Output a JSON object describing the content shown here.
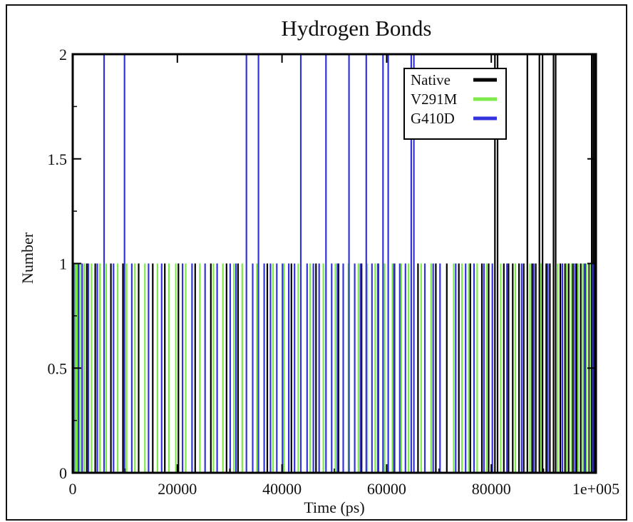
{
  "chart_data": {
    "type": "line",
    "render_style": "drop-lines",
    "title": "Hydrogen Bonds",
    "xlabel": "Time (ps)",
    "ylabel": "Number",
    "xlim": [
      0,
      100000
    ],
    "ylim": [
      0,
      2
    ],
    "xticks": [
      0,
      20000,
      40000,
      60000,
      80000,
      100000
    ],
    "xtick_labels": [
      "0",
      "20000",
      "40000",
      "60000",
      "80000",
      "1e+005"
    ],
    "yticks": [
      0,
      0.5,
      1,
      1.5,
      2
    ],
    "ytick_labels": [
      "0",
      "0.5",
      "1",
      "1.5",
      "2"
    ],
    "grid": false,
    "legend_position": "top-right",
    "series": [
      {
        "name": "Native",
        "color": "#000000",
        "events": [
          {
            "x": 500,
            "y": 1
          },
          {
            "x": 2700,
            "y": 1
          },
          {
            "x": 4300,
            "y": 1
          },
          {
            "x": 7300,
            "y": 1
          },
          {
            "x": 9600,
            "y": 1
          },
          {
            "x": 12600,
            "y": 1
          },
          {
            "x": 15300,
            "y": 1
          },
          {
            "x": 17600,
            "y": 1
          },
          {
            "x": 20200,
            "y": 1
          },
          {
            "x": 23400,
            "y": 1
          },
          {
            "x": 26400,
            "y": 1
          },
          {
            "x": 29400,
            "y": 1
          },
          {
            "x": 31600,
            "y": 1
          },
          {
            "x": 37200,
            "y": 1
          },
          {
            "x": 41800,
            "y": 1
          },
          {
            "x": 46500,
            "y": 1
          },
          {
            "x": 50800,
            "y": 1
          },
          {
            "x": 55200,
            "y": 1
          },
          {
            "x": 58400,
            "y": 1
          },
          {
            "x": 61500,
            "y": 1
          },
          {
            "x": 66000,
            "y": 1
          },
          {
            "x": 69400,
            "y": 1
          },
          {
            "x": 71500,
            "y": 1
          },
          {
            "x": 73800,
            "y": 1
          },
          {
            "x": 76000,
            "y": 1
          },
          {
            "x": 78200,
            "y": 1
          },
          {
            "x": 79500,
            "y": 1
          },
          {
            "x": 80700,
            "y": 2
          },
          {
            "x": 81200,
            "y": 2
          },
          {
            "x": 82400,
            "y": 1
          },
          {
            "x": 83300,
            "y": 1
          },
          {
            "x": 84100,
            "y": 1
          },
          {
            "x": 85300,
            "y": 1
          },
          {
            "x": 86200,
            "y": 1
          },
          {
            "x": 86900,
            "y": 2
          },
          {
            "x": 87800,
            "y": 1
          },
          {
            "x": 88500,
            "y": 1
          },
          {
            "x": 89200,
            "y": 2
          },
          {
            "x": 89800,
            "y": 2
          },
          {
            "x": 90500,
            "y": 1
          },
          {
            "x": 91200,
            "y": 1
          },
          {
            "x": 91900,
            "y": 2
          },
          {
            "x": 92300,
            "y": 2
          },
          {
            "x": 93200,
            "y": 1
          },
          {
            "x": 94100,
            "y": 1
          },
          {
            "x": 94800,
            "y": 1
          },
          {
            "x": 95600,
            "y": 1
          },
          {
            "x": 96300,
            "y": 1
          },
          {
            "x": 97100,
            "y": 1
          },
          {
            "x": 98000,
            "y": 1
          },
          {
            "x": 98700,
            "y": 1
          },
          {
            "x": 99200,
            "y": 2
          },
          {
            "x": 99500,
            "y": 2
          },
          {
            "x": 99800,
            "y": 2
          }
        ]
      },
      {
        "name": "V291M",
        "color": "#7ce84a",
        "events": [
          {
            "x": 100,
            "y": 1
          },
          {
            "x": 300,
            "y": 1
          },
          {
            "x": 600,
            "y": 1
          },
          {
            "x": 900,
            "y": 1
          },
          {
            "x": 1400,
            "y": 1
          },
          {
            "x": 2200,
            "y": 1
          },
          {
            "x": 3600,
            "y": 1
          },
          {
            "x": 5200,
            "y": 1
          },
          {
            "x": 6400,
            "y": 1
          },
          {
            "x": 8600,
            "y": 1
          },
          {
            "x": 10300,
            "y": 1
          },
          {
            "x": 11900,
            "y": 1
          },
          {
            "x": 13800,
            "y": 1
          },
          {
            "x": 16200,
            "y": 1
          },
          {
            "x": 18400,
            "y": 1
          },
          {
            "x": 19700,
            "y": 1
          },
          {
            "x": 21600,
            "y": 1
          },
          {
            "x": 24300,
            "y": 1
          },
          {
            "x": 26900,
            "y": 1
          },
          {
            "x": 28700,
            "y": 1
          },
          {
            "x": 30800,
            "y": 1
          },
          {
            "x": 32400,
            "y": 1
          },
          {
            "x": 35200,
            "y": 1
          },
          {
            "x": 38300,
            "y": 1
          },
          {
            "x": 40400,
            "y": 1
          },
          {
            "x": 43100,
            "y": 1
          },
          {
            "x": 45400,
            "y": 1
          },
          {
            "x": 47900,
            "y": 1
          },
          {
            "x": 50200,
            "y": 1
          },
          {
            "x": 52700,
            "y": 1
          },
          {
            "x": 54600,
            "y": 1
          },
          {
            "x": 56300,
            "y": 1
          },
          {
            "x": 57800,
            "y": 1
          },
          {
            "x": 59600,
            "y": 1
          },
          {
            "x": 61100,
            "y": 1
          },
          {
            "x": 62800,
            "y": 1
          },
          {
            "x": 64200,
            "y": 1
          },
          {
            "x": 66600,
            "y": 1
          },
          {
            "x": 68500,
            "y": 1
          },
          {
            "x": 72800,
            "y": 1
          },
          {
            "x": 74400,
            "y": 1
          },
          {
            "x": 75700,
            "y": 1
          },
          {
            "x": 77300,
            "y": 1
          },
          {
            "x": 79100,
            "y": 1
          },
          {
            "x": 81800,
            "y": 1
          },
          {
            "x": 84600,
            "y": 1
          },
          {
            "x": 87400,
            "y": 1
          },
          {
            "x": 89500,
            "y": 1
          },
          {
            "x": 92700,
            "y": 1
          },
          {
            "x": 94400,
            "y": 1
          },
          {
            "x": 95300,
            "y": 1
          },
          {
            "x": 96600,
            "y": 1
          },
          {
            "x": 97500,
            "y": 1
          },
          {
            "x": 98200,
            "y": 1
          },
          {
            "x": 98900,
            "y": 1
          }
        ]
      },
      {
        "name": "G410D",
        "color": "#3333dd",
        "events": [
          {
            "x": 200,
            "y": 1
          },
          {
            "x": 1100,
            "y": 1
          },
          {
            "x": 1800,
            "y": 1
          },
          {
            "x": 3000,
            "y": 1
          },
          {
            "x": 4700,
            "y": 1
          },
          {
            "x": 6000,
            "y": 2
          },
          {
            "x": 7800,
            "y": 1
          },
          {
            "x": 9900,
            "y": 2
          },
          {
            "x": 11300,
            "y": 1
          },
          {
            "x": 14500,
            "y": 1
          },
          {
            "x": 17000,
            "y": 1
          },
          {
            "x": 21000,
            "y": 1
          },
          {
            "x": 22800,
            "y": 1
          },
          {
            "x": 25300,
            "y": 1
          },
          {
            "x": 27600,
            "y": 1
          },
          {
            "x": 30100,
            "y": 1
          },
          {
            "x": 31200,
            "y": 1
          },
          {
            "x": 33200,
            "y": 2
          },
          {
            "x": 34400,
            "y": 1
          },
          {
            "x": 35500,
            "y": 2
          },
          {
            "x": 36600,
            "y": 1
          },
          {
            "x": 37800,
            "y": 1
          },
          {
            "x": 39000,
            "y": 1
          },
          {
            "x": 40100,
            "y": 1
          },
          {
            "x": 41300,
            "y": 1
          },
          {
            "x": 42400,
            "y": 1
          },
          {
            "x": 43600,
            "y": 2
          },
          {
            "x": 44800,
            "y": 1
          },
          {
            "x": 46000,
            "y": 1
          },
          {
            "x": 47100,
            "y": 1
          },
          {
            "x": 48400,
            "y": 2
          },
          {
            "x": 49500,
            "y": 1
          },
          {
            "x": 50600,
            "y": 1
          },
          {
            "x": 51700,
            "y": 1
          },
          {
            "x": 52800,
            "y": 2
          },
          {
            "x": 53900,
            "y": 1
          },
          {
            "x": 55000,
            "y": 1
          },
          {
            "x": 56100,
            "y": 2
          },
          {
            "x": 57200,
            "y": 1
          },
          {
            "x": 58300,
            "y": 1
          },
          {
            "x": 59300,
            "y": 2
          },
          {
            "x": 60300,
            "y": 2
          },
          {
            "x": 61400,
            "y": 1
          },
          {
            "x": 62500,
            "y": 1
          },
          {
            "x": 63600,
            "y": 1
          },
          {
            "x": 64700,
            "y": 2
          },
          {
            "x": 65200,
            "y": 2
          },
          {
            "x": 67300,
            "y": 1
          },
          {
            "x": 68900,
            "y": 1
          },
          {
            "x": 70200,
            "y": 1
          },
          {
            "x": 73200,
            "y": 1
          },
          {
            "x": 75100,
            "y": 1
          },
          {
            "x": 76700,
            "y": 1
          },
          {
            "x": 78600,
            "y": 1
          },
          {
            "x": 80200,
            "y": 1
          },
          {
            "x": 83000,
            "y": 1
          },
          {
            "x": 85800,
            "y": 1
          },
          {
            "x": 88100,
            "y": 1
          },
          {
            "x": 90800,
            "y": 1
          },
          {
            "x": 93600,
            "y": 1
          },
          {
            "x": 96000,
            "y": 1
          },
          {
            "x": 97800,
            "y": 1
          },
          {
            "x": 99400,
            "y": 1
          }
        ]
      }
    ]
  }
}
